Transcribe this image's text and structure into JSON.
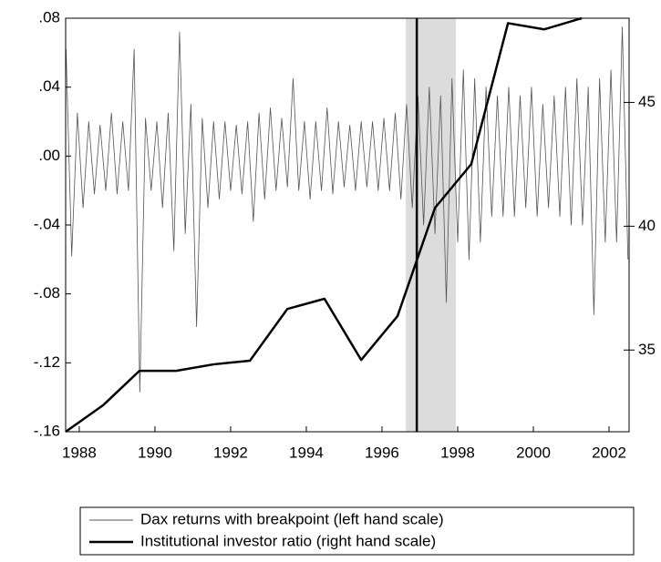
{
  "chart_data": {
    "type": "line",
    "xlim": [
      1987.64,
      2002.53
    ],
    "xticks": [
      1988,
      1990,
      1992,
      1994,
      1996,
      1998,
      2000,
      2002
    ],
    "ylim": [
      -0.16,
      0.08
    ],
    "yticks": [
      {
        "value": 0.08,
        "label": ".08"
      },
      {
        "value": 0.04,
        "label": ".04"
      },
      {
        "value": 0,
        "label": ".00"
      },
      {
        "value": -0.04,
        "label": "-.04"
      },
      {
        "value": -0.08,
        "label": "-.08"
      },
      {
        "value": -0.12,
        "label": "-.12"
      },
      {
        "value": -0.16,
        "label": "-.16"
      }
    ],
    "y2lim": [
      31.7,
      48.4
    ],
    "y2ticks": [
      35,
      40,
      45
    ],
    "breakpoint": 1996.92,
    "shaded_range": [
      1996.63,
      1997.95
    ],
    "series": [
      {
        "name": "Dax returns with breakpoint (left hand scale)",
        "color": "#555555",
        "axis": "y",
        "x": [
          1987.65,
          1987.8,
          1987.95,
          1988.1,
          1988.25,
          1988.4,
          1988.55,
          1988.7,
          1988.85,
          1989.0,
          1989.15,
          1989.3,
          1989.45,
          1989.6,
          1989.75,
          1989.9,
          1990.05,
          1990.2,
          1990.35,
          1990.5,
          1990.65,
          1990.8,
          1990.95,
          1991.1,
          1991.25,
          1991.4,
          1991.55,
          1991.7,
          1991.85,
          1992.0,
          1992.15,
          1992.3,
          1992.45,
          1992.6,
          1992.75,
          1992.9,
          1993.05,
          1993.2,
          1993.35,
          1993.5,
          1993.65,
          1993.8,
          1993.95,
          1994.1,
          1994.25,
          1994.4,
          1994.55,
          1994.7,
          1994.85,
          1995.0,
          1995.15,
          1995.3,
          1995.45,
          1995.6,
          1995.75,
          1995.9,
          1996.05,
          1996.2,
          1996.35,
          1996.5,
          1996.65,
          1996.8,
          1996.95,
          1997.1,
          1997.25,
          1997.4,
          1997.55,
          1997.7,
          1997.85,
          1998.0,
          1998.15,
          1998.3,
          1998.45,
          1998.6,
          1998.75,
          1998.9,
          1999.05,
          1999.2,
          1999.35,
          1999.5,
          1999.65,
          1999.8,
          1999.95,
          2000.1,
          2000.25,
          2000.4,
          2000.55,
          2000.7,
          2000.85,
          2001.0,
          2001.15,
          2001.3,
          2001.45,
          2001.6,
          2001.75,
          2001.9,
          2002.05,
          2002.2,
          2002.35,
          2002.5
        ],
        "values": [
          0.062,
          -0.058,
          0.025,
          -0.03,
          0.02,
          -0.022,
          0.018,
          -0.02,
          0.025,
          -0.022,
          0.02,
          -0.02,
          0.062,
          -0.137,
          0.022,
          -0.02,
          0.02,
          -0.03,
          0.025,
          -0.055,
          0.072,
          -0.045,
          0.03,
          -0.099,
          0.022,
          -0.03,
          0.02,
          -0.025,
          0.02,
          -0.02,
          0.018,
          -0.022,
          0.02,
          -0.038,
          0.025,
          -0.025,
          0.028,
          -0.02,
          0.022,
          -0.018,
          0.045,
          -0.02,
          0.02,
          -0.025,
          0.02,
          -0.02,
          0.028,
          -0.022,
          0.02,
          -0.018,
          0.018,
          -0.02,
          0.02,
          -0.018,
          0.02,
          -0.02,
          0.022,
          -0.02,
          0.025,
          -0.025,
          0.03,
          -0.03,
          0.035,
          -0.04,
          0.04,
          -0.045,
          0.035,
          -0.085,
          0.045,
          -0.05,
          0.05,
          -0.06,
          0.045,
          -0.05,
          0.04,
          -0.035,
          0.035,
          -0.035,
          0.04,
          -0.035,
          0.035,
          -0.03,
          0.04,
          -0.035,
          0.03,
          -0.03,
          0.035,
          -0.035,
          0.04,
          -0.04,
          0.045,
          -0.04,
          0.04,
          -0.092,
          0.045,
          -0.05,
          0.05,
          -0.05,
          0.075,
          -0.06
        ]
      },
      {
        "name": "Institutional investor ratio (right hand scale)",
        "color": "#000000",
        "axis": "y2",
        "x": [
          1987.64,
          1988.63,
          1989.59,
          1990.56,
          1991.54,
          1992.51,
          1993.5,
          1994.48,
          1995.45,
          1996.41,
          1997.4,
          1998.36,
          1999.33,
          2000.29,
          2001.28
        ],
        "values": [
          31.7,
          32.77,
          34.16,
          34.16,
          34.42,
          34.57,
          36.66,
          37.07,
          34.6,
          36.37,
          40.74,
          42.51,
          48.2,
          47.95,
          48.4
        ]
      }
    ]
  }
}
